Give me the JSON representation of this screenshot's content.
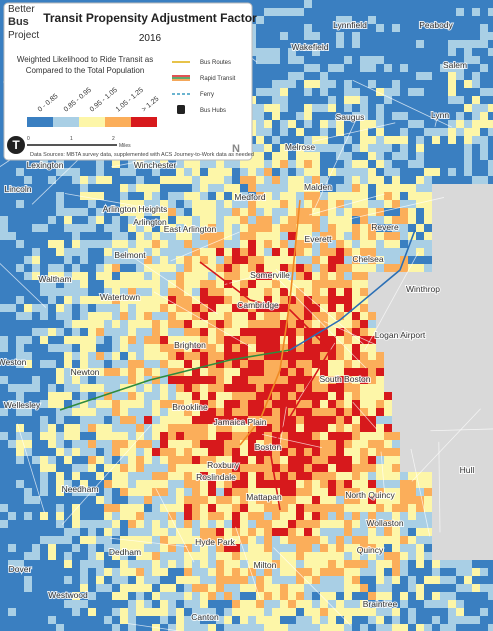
{
  "logo": [
    "Better",
    "Bus",
    "Project"
  ],
  "legend": {
    "title": "Transit Propensity Adjustment Factor",
    "year": "2016",
    "subtitle": [
      "Weighted Likelihood to Ride Transit as",
      "Compared to the Total Population"
    ],
    "classes": [
      {
        "label": "0 - 0.85",
        "color": "#3a7fc1"
      },
      {
        "label": "0.85 - 0.95",
        "color": "#a9cfe5"
      },
      {
        "label": "0.95 - 1.05",
        "color": "#fdf6a8"
      },
      {
        "label": "1.05 - 1.25",
        "color": "#fbae5a"
      },
      {
        "label": "> 1.25",
        "color": "#d7191c"
      }
    ],
    "layers": [
      "Bus Routes",
      "Rapid Transit",
      "Ferry",
      "Bus Hubs"
    ],
    "scale": [
      "0",
      "1",
      "2",
      "Miles"
    ],
    "source": "Data Sources: MBTA survey data, supplemented with ACS Journey-to-Work data as needed",
    "north": "N"
  },
  "places": [
    "Lynnfield",
    "Peabody",
    "Wakefield",
    "Salem",
    "Lynn",
    "Saugus",
    "Melrose",
    "Lexington",
    "Winchester",
    "Lincoln",
    "Malden",
    "Medford",
    "Revere",
    "Everett",
    "Arlington Heights",
    "Arlington",
    "East Arlington",
    "Belmont",
    "Somerville",
    "Chelsea",
    "Waltham",
    "Watertown",
    "Cambridge",
    "Winthrop",
    "Logan Airport",
    "Weston",
    "Newton",
    "Brighton",
    "Brookline",
    "Wellesley",
    "South Boston",
    "Boston",
    "Roxbury",
    "Hull",
    "Jamaica Plain",
    "Roslindale",
    "Needham",
    "North Quincy",
    "Mattapan",
    "Wollaston",
    "Hyde Park",
    "Dedham",
    "Quincy",
    "Milton",
    "Dover",
    "Westwood",
    "Braintree",
    "Canton"
  ]
}
